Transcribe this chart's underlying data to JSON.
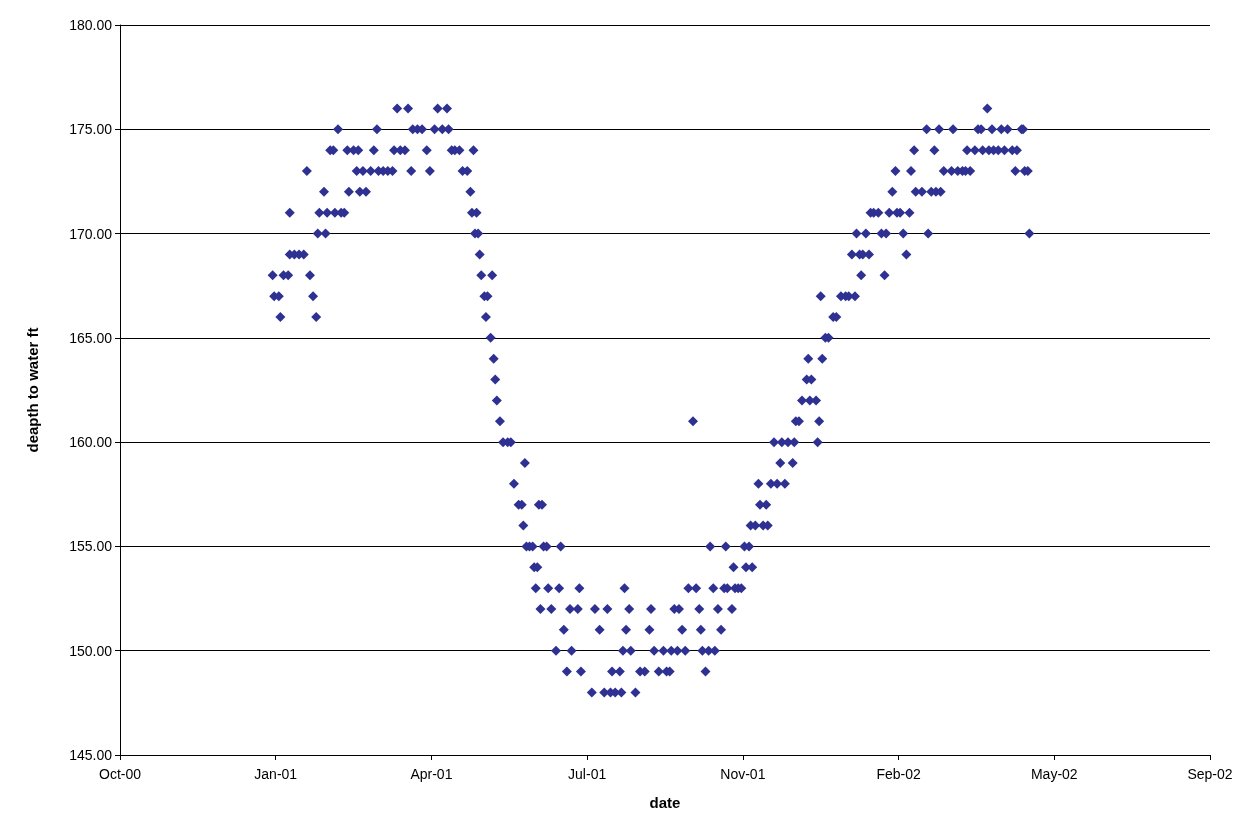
{
  "chart_data": {
    "type": "scatter",
    "xlabel": "date",
    "ylabel": "deapth to water ft",
    "marker": "diamond",
    "grid": "y",
    "xlim": [
      "2000-10-03",
      "2002-09-03"
    ],
    "xticks": [
      {
        "value": "2000-10-03",
        "label": "Oct-00"
      },
      {
        "value": "2001-01-11",
        "label": "Jan-01"
      },
      {
        "value": "2001-04-21",
        "label": "Apr-01"
      },
      {
        "value": "2001-07-30",
        "label": "Jul-01"
      },
      {
        "value": "2001-11-07",
        "label": "Nov-01"
      },
      {
        "value": "2002-02-15",
        "label": "Feb-02"
      },
      {
        "value": "2002-05-26",
        "label": "May-02"
      },
      {
        "value": "2002-09-03",
        "label": "Sep-02"
      }
    ],
    "ylim": [
      145,
      180
    ],
    "yticks": [
      {
        "value": 145,
        "label": "145.00"
      },
      {
        "value": 150,
        "label": "150.00"
      },
      {
        "value": 155,
        "label": "155.00"
      },
      {
        "value": 160,
        "label": "160.00"
      },
      {
        "value": 165,
        "label": "165.00"
      },
      {
        "value": 170,
        "label": "170.00"
      },
      {
        "value": 175,
        "label": "175.00"
      },
      {
        "value": 180,
        "label": "180.00"
      }
    ],
    "series": [
      {
        "color": "#2e3192",
        "x": [
          "2001-01-09",
          "2001-01-10",
          "2001-01-13",
          "2001-01-14",
          "2001-01-16",
          "2001-01-19",
          "2001-01-20",
          "2001-01-20",
          "2001-01-23",
          "2001-01-26",
          "2001-01-29",
          "2001-01-31",
          "2001-02-02",
          "2001-02-04",
          "2001-02-06",
          "2001-02-07",
          "2001-02-08",
          "2001-02-11",
          "2001-02-12",
          "2001-02-13",
          "2001-02-15",
          "2001-02-17",
          "2001-02-18",
          "2001-02-20",
          "2001-02-22",
          "2001-02-24",
          "2001-02-26",
          "2001-02-27",
          "2001-03-02",
          "2001-03-04",
          "2001-03-05",
          "2001-03-06",
          "2001-03-08",
          "2001-03-10",
          "2001-03-13",
          "2001-03-15",
          "2001-03-17",
          "2001-03-18",
          "2001-03-21",
          "2001-03-24",
          "2001-03-27",
          "2001-03-28",
          "2001-03-30",
          "2001-04-01",
          "2001-04-04",
          "2001-04-06",
          "2001-04-08",
          "2001-04-09",
          "2001-04-12",
          "2001-04-15",
          "2001-04-18",
          "2001-04-20",
          "2001-04-23",
          "2001-04-25",
          "2001-04-28",
          "2001-05-01",
          "2001-05-02",
          "2001-05-04",
          "2001-05-06",
          "2001-05-09",
          "2001-05-11",
          "2001-05-14",
          "2001-05-16",
          "2001-05-17",
          "2001-05-18",
          "2001-05-19",
          "2001-05-20",
          "2001-05-21",
          "2001-05-22",
          "2001-05-23",
          "2001-05-25",
          "2001-05-26",
          "2001-05-27",
          "2001-05-29",
          "2001-05-30",
          "2001-05-31",
          "2001-06-01",
          "2001-06-02",
          "2001-06-04",
          "2001-06-06",
          "2001-06-09",
          "2001-06-11",
          "2001-06-13",
          "2001-06-16",
          "2001-06-18",
          "2001-06-19",
          "2001-06-20",
          "2001-06-21",
          "2001-06-23",
          "2001-06-25",
          "2001-06-26",
          "2001-06-27",
          "2001-06-28",
          "2001-06-29",
          "2001-06-30",
          "2001-07-01",
          "2001-07-02",
          "2001-07-04",
          "2001-07-05",
          "2001-07-07",
          "2001-07-10",
          "2001-07-12",
          "2001-07-13",
          "2001-07-15",
          "2001-07-17",
          "2001-07-19",
          "2001-07-20",
          "2001-07-24",
          "2001-07-25",
          "2001-07-26",
          "2001-08-02",
          "2001-08-04",
          "2001-08-07",
          "2001-08-10",
          "2001-08-12",
          "2001-08-14",
          "2001-08-15",
          "2001-08-17",
          "2001-08-20",
          "2001-08-21",
          "2001-08-22",
          "2001-08-23",
          "2001-08-24",
          "2001-08-26",
          "2001-08-27",
          "2001-08-30",
          "2001-09-02",
          "2001-09-05",
          "2001-09-08",
          "2001-09-09",
          "2001-09-11",
          "2001-09-14",
          "2001-09-17",
          "2001-09-19",
          "2001-09-21",
          "2001-09-22",
          "2001-09-24",
          "2001-09-26",
          "2001-09-27",
          "2001-09-29",
          "2001-10-01",
          "2001-10-03",
          "2001-10-06",
          "2001-10-08",
          "2001-10-10",
          "2001-10-11",
          "2001-10-12",
          "2001-10-14",
          "2001-10-16",
          "2001-10-17",
          "2001-10-19",
          "2001-10-20",
          "2001-10-22",
          "2001-10-24",
          "2001-10-26",
          "2001-10-27",
          "2001-10-28",
          "2001-10-31",
          "2001-11-01",
          "2001-11-02",
          "2001-11-04",
          "2001-11-06",
          "2001-11-08",
          "2001-11-09",
          "2001-11-11",
          "2001-11-12",
          "2001-11-13",
          "2001-11-15",
          "2001-11-17",
          "2001-11-18",
          "2001-11-20",
          "2001-11-22",
          "2001-11-23",
          "2001-11-25",
          "2001-11-27",
          "2001-11-29",
          "2001-12-01",
          "2001-12-02",
          "2001-12-04",
          "2001-12-06",
          "2001-12-09",
          "2001-12-10",
          "2001-12-11",
          "2001-12-13",
          "2001-12-15",
          "2001-12-18",
          "2001-12-19",
          "2001-12-20",
          "2001-12-21",
          "2001-12-24",
          "2001-12-25",
          "2001-12-26",
          "2001-12-27",
          "2001-12-28",
          "2001-12-30",
          "2002-01-01",
          "2002-01-04",
          "2002-01-06",
          "2002-01-09",
          "2002-01-12",
          "2002-01-14",
          "2002-01-16",
          "2002-01-18",
          "2002-01-19",
          "2002-01-21",
          "2002-01-22",
          "2002-01-23",
          "2002-01-25",
          "2002-01-27",
          "2002-01-28",
          "2002-01-30",
          "2002-02-02",
          "2002-02-04",
          "2002-02-06",
          "2002-02-07",
          "2002-02-09",
          "2002-02-11",
          "2002-02-13",
          "2002-02-14",
          "2002-02-16",
          "2002-02-18",
          "2002-02-20",
          "2002-02-22",
          "2002-02-23",
          "2002-02-25",
          "2002-02-26",
          "2002-03-02",
          "2002-03-05",
          "2002-03-06",
          "2002-03-08",
          "2002-03-10",
          "2002-03-11",
          "2002-03-13",
          "2002-03-14",
          "2002-03-16",
          "2002-03-21",
          "2002-03-22",
          "2002-03-25",
          "2002-03-28",
          "2002-03-30",
          "2002-03-31",
          "2002-04-02",
          "2002-04-05",
          "2002-04-07",
          "2002-04-09",
          "2002-04-10",
          "2002-04-13",
          "2002-04-14",
          "2002-04-16",
          "2002-04-17",
          "2002-04-20",
          "2002-04-22",
          "2002-04-24",
          "2002-04-26",
          "2002-04-29",
          "2002-05-01",
          "2002-05-02",
          "2002-05-05",
          "2002-05-06",
          "2002-05-07",
          "2002-05-09",
          "2002-05-10"
        ],
        "values": [
          168,
          167,
          167,
          166,
          168,
          168,
          171,
          169,
          169,
          169,
          169,
          173,
          168,
          167,
          166,
          170,
          171,
          172,
          170,
          171,
          174,
          174,
          171,
          175,
          171,
          171,
          174,
          172,
          174,
          173,
          174,
          172,
          173,
          172,
          173,
          174,
          175,
          173,
          173,
          173,
          173,
          174,
          176,
          174,
          174,
          176,
          173,
          175,
          175,
          175,
          174,
          173,
          175,
          176,
          175,
          176,
          175,
          174,
          174,
          174,
          173,
          173,
          172,
          171,
          174,
          170,
          171,
          170,
          169,
          168,
          167,
          166,
          167,
          165,
          168,
          164,
          163,
          162,
          161,
          160,
          160,
          160,
          158,
          157,
          157,
          156,
          159,
          155,
          155,
          155,
          154,
          153,
          154,
          157,
          152,
          157,
          155,
          155,
          153,
          152,
          150,
          153,
          155,
          151,
          149,
          152,
          150,
          152,
          153,
          149,
          148,
          152,
          151,
          148,
          152,
          148,
          149,
          148,
          149,
          148,
          150,
          153,
          151,
          152,
          150,
          148,
          149,
          149,
          151,
          152,
          150,
          149,
          150,
          149,
          149,
          150,
          152,
          150,
          152,
          151,
          150,
          153,
          161,
          153,
          152,
          151,
          150,
          149,
          150,
          155,
          153,
          150,
          152,
          151,
          153,
          155,
          153,
          152,
          154,
          153,
          153,
          153,
          155,
          154,
          155,
          156,
          154,
          156,
          158,
          157,
          156,
          157,
          156,
          158,
          160,
          158,
          159,
          160,
          158,
          160,
          159,
          160,
          161,
          161,
          162,
          163,
          164,
          162,
          163,
          162,
          160,
          161,
          167,
          164,
          165,
          165,
          166,
          166,
          167,
          167,
          167,
          169,
          167,
          170,
          169,
          168,
          169,
          170,
          169,
          171,
          171,
          171,
          170,
          168,
          170,
          171,
          172,
          173,
          171,
          171,
          170,
          169,
          171,
          173,
          174,
          172,
          172,
          175,
          170,
          172,
          174,
          172,
          175,
          172,
          173,
          173,
          175,
          173,
          173,
          173,
          174,
          173,
          174,
          175,
          175,
          174,
          176,
          174,
          175,
          174,
          174,
          175,
          174,
          175,
          174,
          173,
          174,
          175,
          175,
          173,
          173,
          170
        ]
      }
    ]
  }
}
